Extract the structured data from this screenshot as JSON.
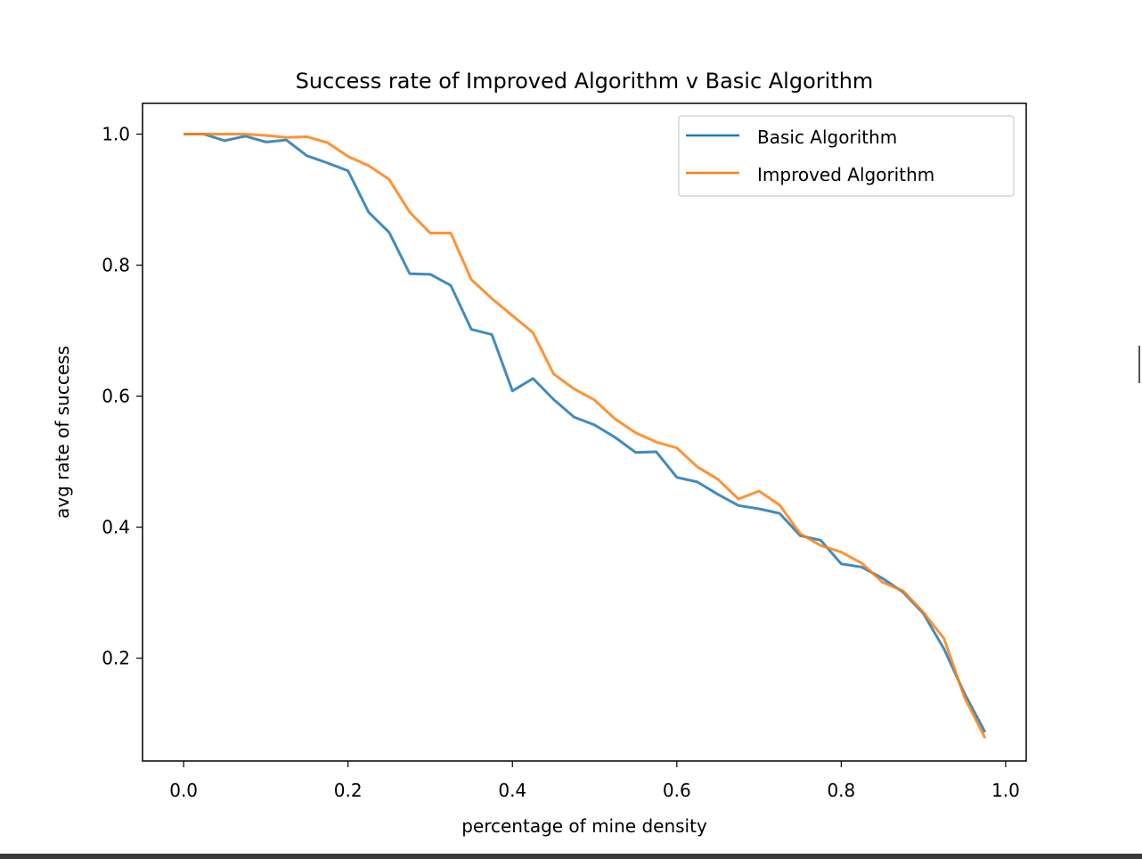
{
  "chart_data": {
    "type": "line",
    "title": "Success rate of Improved Algorithm v Basic Algorithm",
    "xlabel": "percentage of mine density",
    "ylabel": "avg rate of success",
    "xlim": [
      -0.05,
      1.025
    ],
    "ylim": [
      0.043,
      1.047
    ],
    "xticks": [
      "0.0",
      "0.2",
      "0.4",
      "0.6",
      "0.8",
      "1.0"
    ],
    "yticks": [
      "0.2",
      "0.4",
      "0.6",
      "0.8",
      "1.0"
    ],
    "grid": false,
    "legend_position": "top-right",
    "x": [
      0.0,
      0.025,
      0.05,
      0.075,
      0.1,
      0.125,
      0.15,
      0.175,
      0.2,
      0.225,
      0.25,
      0.275,
      0.3,
      0.325,
      0.35,
      0.375,
      0.4,
      0.425,
      0.45,
      0.475,
      0.5,
      0.525,
      0.55,
      0.575,
      0.6,
      0.625,
      0.65,
      0.675,
      0.7,
      0.725,
      0.75,
      0.775,
      0.8,
      0.825,
      0.85,
      0.875,
      0.9,
      0.925,
      0.95,
      0.975
    ],
    "series": [
      {
        "name": "Basic Algorithm",
        "color": "#1f77b4",
        "values": [
          1.0,
          1.0,
          0.99,
          0.997,
          0.988,
          0.991,
          0.967,
          0.956,
          0.944,
          0.881,
          0.85,
          0.787,
          0.786,
          0.769,
          0.702,
          0.694,
          0.608,
          0.627,
          0.595,
          0.568,
          0.556,
          0.537,
          0.514,
          0.515,
          0.476,
          0.469,
          0.45,
          0.433,
          0.428,
          0.421,
          0.387,
          0.38,
          0.344,
          0.339,
          0.322,
          0.301,
          0.268,
          0.214,
          0.146,
          0.087
        ]
      },
      {
        "name": "Improved Algorithm",
        "color": "#ff7f0e",
        "values": [
          1.0,
          1.0,
          1.0,
          1.0,
          0.998,
          0.995,
          0.996,
          0.987,
          0.966,
          0.952,
          0.931,
          0.881,
          0.849,
          0.849,
          0.778,
          0.749,
          0.723,
          0.697,
          0.634,
          0.611,
          0.594,
          0.565,
          0.544,
          0.53,
          0.521,
          0.492,
          0.473,
          0.443,
          0.455,
          0.434,
          0.39,
          0.372,
          0.362,
          0.345,
          0.316,
          0.303,
          0.27,
          0.23,
          0.14,
          0.078
        ]
      }
    ]
  }
}
